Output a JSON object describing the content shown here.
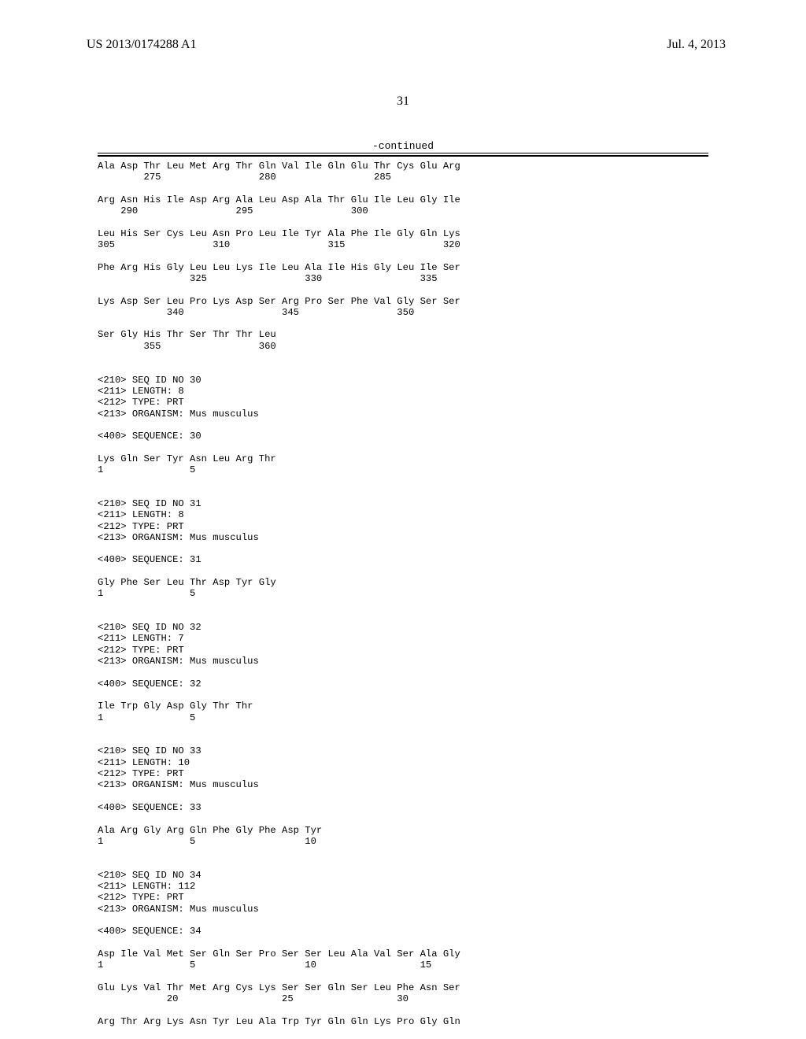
{
  "header": {
    "patent_no": "US 2013/0174288 A1",
    "date": "Jul. 4, 2013"
  },
  "page_no": "31",
  "continued_label": "-continued",
  "listing": "Ala Asp Thr Leu Met Arg Thr Gln Val Ile Gln Glu Thr Cys Glu Arg\n        275                 280                 285\n\nArg Asn His Ile Asp Arg Ala Leu Asp Ala Thr Glu Ile Leu Gly Ile\n    290                 295                 300\n\nLeu His Ser Cys Leu Asn Pro Leu Ile Tyr Ala Phe Ile Gly Gln Lys\n305                 310                 315                 320\n\nPhe Arg His Gly Leu Leu Lys Ile Leu Ala Ile His Gly Leu Ile Ser\n                325                 330                 335\n\nLys Asp Ser Leu Pro Lys Asp Ser Arg Pro Ser Phe Val Gly Ser Ser\n            340                 345                 350\n\nSer Gly His Thr Ser Thr Thr Leu\n        355                 360\n\n\n<210> SEQ ID NO 30\n<211> LENGTH: 8\n<212> TYPE: PRT\n<213> ORGANISM: Mus musculus\n\n<400> SEQUENCE: 30\n\nLys Gln Ser Tyr Asn Leu Arg Thr\n1               5\n\n\n<210> SEQ ID NO 31\n<211> LENGTH: 8\n<212> TYPE: PRT\n<213> ORGANISM: Mus musculus\n\n<400> SEQUENCE: 31\n\nGly Phe Ser Leu Thr Asp Tyr Gly\n1               5\n\n\n<210> SEQ ID NO 32\n<211> LENGTH: 7\n<212> TYPE: PRT\n<213> ORGANISM: Mus musculus\n\n<400> SEQUENCE: 32\n\nIle Trp Gly Asp Gly Thr Thr\n1               5\n\n\n<210> SEQ ID NO 33\n<211> LENGTH: 10\n<212> TYPE: PRT\n<213> ORGANISM: Mus musculus\n\n<400> SEQUENCE: 33\n\nAla Arg Gly Arg Gln Phe Gly Phe Asp Tyr\n1               5                   10\n\n\n<210> SEQ ID NO 34\n<211> LENGTH: 112\n<212> TYPE: PRT\n<213> ORGANISM: Mus musculus\n\n<400> SEQUENCE: 34\n\nAsp Ile Val Met Ser Gln Ser Pro Ser Ser Leu Ala Val Ser Ala Gly\n1               5                   10                  15\n\nGlu Lys Val Thr Met Arg Cys Lys Ser Ser Gln Ser Leu Phe Asn Ser\n            20                  25                  30\n\nArg Thr Arg Lys Asn Tyr Leu Ala Trp Tyr Gln Gln Lys Pro Gly Gln"
}
